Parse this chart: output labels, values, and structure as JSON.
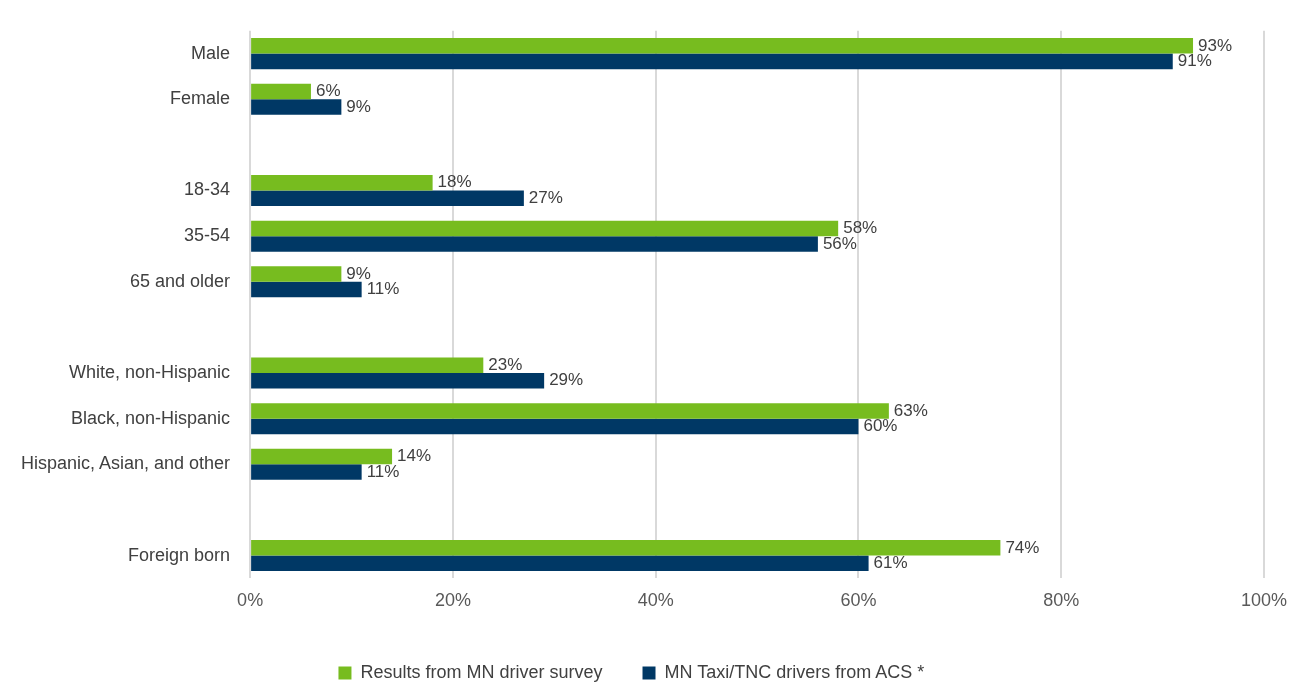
{
  "chart_data": {
    "type": "bar",
    "orientation": "horizontal",
    "categories": [
      "Male",
      "Female",
      null,
      "18-34",
      "35-54",
      "65 and older",
      null,
      "White, non-Hispanic",
      "Black, non-Hispanic",
      "Hispanic, Asian, and other",
      null,
      "Foreign born"
    ],
    "series": [
      {
        "name": "Results from MN driver survey",
        "color": "#77bc1f",
        "values": [
          93,
          6,
          null,
          18,
          58,
          9,
          null,
          23,
          63,
          14,
          null,
          74
        ],
        "value_labels": [
          "93%",
          "6%",
          null,
          "18%",
          "58%",
          "9%",
          null,
          "23%",
          "63%",
          "14%",
          null,
          "74%"
        ]
      },
      {
        "name": "MN Taxi/TNC drivers from ACS *",
        "color": "#003865",
        "values": [
          91,
          9,
          null,
          27,
          56,
          11,
          null,
          29,
          60,
          11,
          null,
          61
        ],
        "value_labels": [
          "91%",
          "9%",
          null,
          "27%",
          "56%",
          "11%",
          null,
          "29%",
          "60%",
          "11%",
          null,
          "61%"
        ]
      }
    ],
    "xlim": [
      0,
      100
    ],
    "xticks": [
      {
        "value": 0,
        "label": "0%"
      },
      {
        "value": 20,
        "label": "20%"
      },
      {
        "value": 40,
        "label": "40%"
      },
      {
        "value": 60,
        "label": "60%"
      },
      {
        "value": 80,
        "label": "80%"
      },
      {
        "value": 100,
        "label": "100%"
      }
    ],
    "grid": "x",
    "legend": "bottom"
  }
}
